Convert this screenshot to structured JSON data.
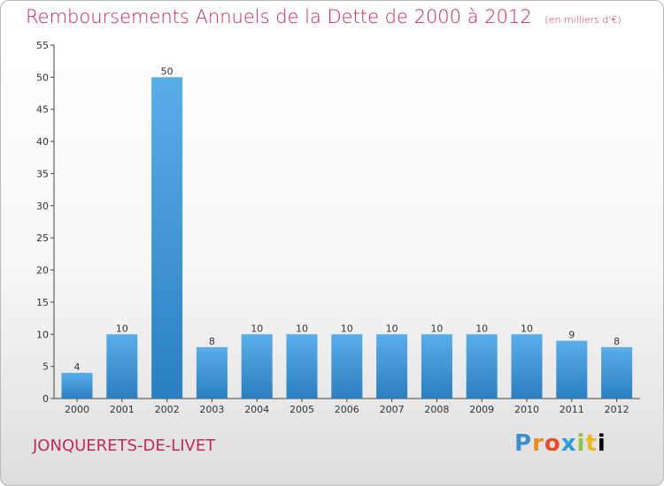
{
  "header": {
    "title": "Remboursements Annuels de la Dette de 2000 à 2012",
    "unit": "(en milliers d'€)"
  },
  "footer": {
    "town": "JONQUERETS-DE-LIVET",
    "logo_letters": [
      "P",
      "r",
      "o",
      "x",
      "i",
      "t",
      "i"
    ]
  },
  "colors": {
    "title": "#c3285e",
    "bar_top": "#5aaee8",
    "bar_bottom": "#2a7fc0"
  },
  "chart_data": {
    "type": "bar",
    "title": "Remboursements Annuels de la Dette de 2000 à 2012",
    "xlabel": "",
    "ylabel": "",
    "categories": [
      "2000",
      "2001",
      "2002",
      "2003",
      "2004",
      "2005",
      "2006",
      "2007",
      "2008",
      "2009",
      "2010",
      "2011",
      "2012"
    ],
    "values": [
      4,
      10,
      50,
      8,
      10,
      10,
      10,
      10,
      10,
      10,
      10,
      9,
      8
    ],
    "ylim": [
      0,
      55
    ],
    "yticks": [
      0,
      5,
      10,
      15,
      20,
      25,
      30,
      35,
      40,
      45,
      50,
      55
    ],
    "grid": false,
    "data_labels": true
  }
}
